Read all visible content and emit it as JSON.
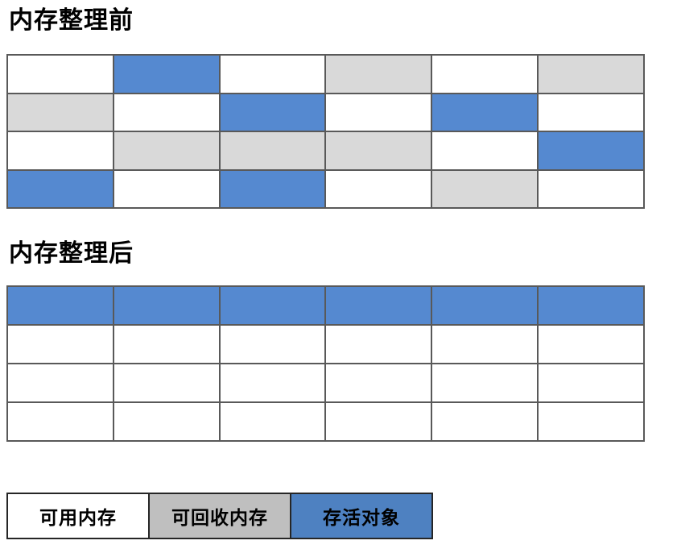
{
  "titles": {
    "before": "内存整理前",
    "after": "内存整理后"
  },
  "colors": {
    "grid_free": "#FFFFFF",
    "grid_reclaimable": "#D9D9D9",
    "grid_live": "#5589D0",
    "legend_free": "#FFFFFF",
    "legend_reclaimable": "#BFBFBF",
    "legend_live": "#4E81C1",
    "grid_border": "#595959",
    "legend_border": "#262626",
    "text": "#000000"
  },
  "grid_before": {
    "rows": 4,
    "cols": 6,
    "cells": [
      [
        "free",
        "live",
        "free",
        "reclaimable",
        "free",
        "reclaimable"
      ],
      [
        "reclaimable",
        "free",
        "live",
        "free",
        "live",
        "free"
      ],
      [
        "free",
        "reclaimable",
        "reclaimable",
        "reclaimable",
        "free",
        "live"
      ],
      [
        "live",
        "free",
        "live",
        "free",
        "reclaimable",
        "free"
      ]
    ]
  },
  "grid_after": {
    "rows": 4,
    "cols": 6,
    "cells": [
      [
        "live",
        "live",
        "live",
        "live",
        "live",
        "live"
      ],
      [
        "free",
        "free",
        "free",
        "free",
        "free",
        "free"
      ],
      [
        "free",
        "free",
        "free",
        "free",
        "free",
        "free"
      ],
      [
        "free",
        "free",
        "free",
        "free",
        "free",
        "free"
      ]
    ]
  },
  "legend": {
    "items": [
      {
        "label": "可用内存",
        "type": "free"
      },
      {
        "label": "可回收内存",
        "type": "reclaimable"
      },
      {
        "label": "存活对象",
        "type": "live"
      }
    ]
  }
}
